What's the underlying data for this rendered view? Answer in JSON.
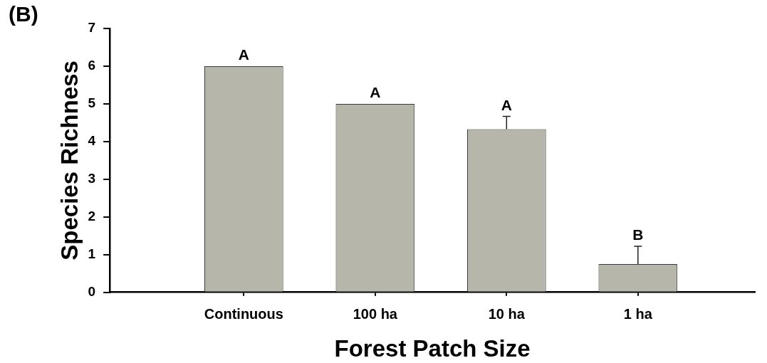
{
  "chart_data": {
    "type": "bar",
    "title": "(B)",
    "xlabel": "Forest Patch Size",
    "ylabel": "Species Richness",
    "categories": [
      "Continuous",
      "100 ha",
      "10 ha",
      "1 ha"
    ],
    "values": [
      6,
      5,
      4.33,
      0.75
    ],
    "color": "#b6b6aa",
    "errors": [
      null,
      null,
      [
        4.33,
        4.67
      ],
      [
        0.75,
        1.22
      ]
    ],
    "ylim": [
      0,
      7
    ],
    "yticks": [
      0,
      1,
      2,
      3,
      4,
      5,
      6,
      7
    ],
    "grid": false,
    "legend": false,
    "annotations": [
      {
        "text": "A",
        "x": "Continuous",
        "y": 6
      },
      {
        "text": "A",
        "x": "100 ha",
        "y": 5
      },
      {
        "text": "A",
        "x": "10 ha",
        "y": 4.67
      },
      {
        "text": "B",
        "x": "1 ha",
        "y": 1.22
      }
    ]
  }
}
